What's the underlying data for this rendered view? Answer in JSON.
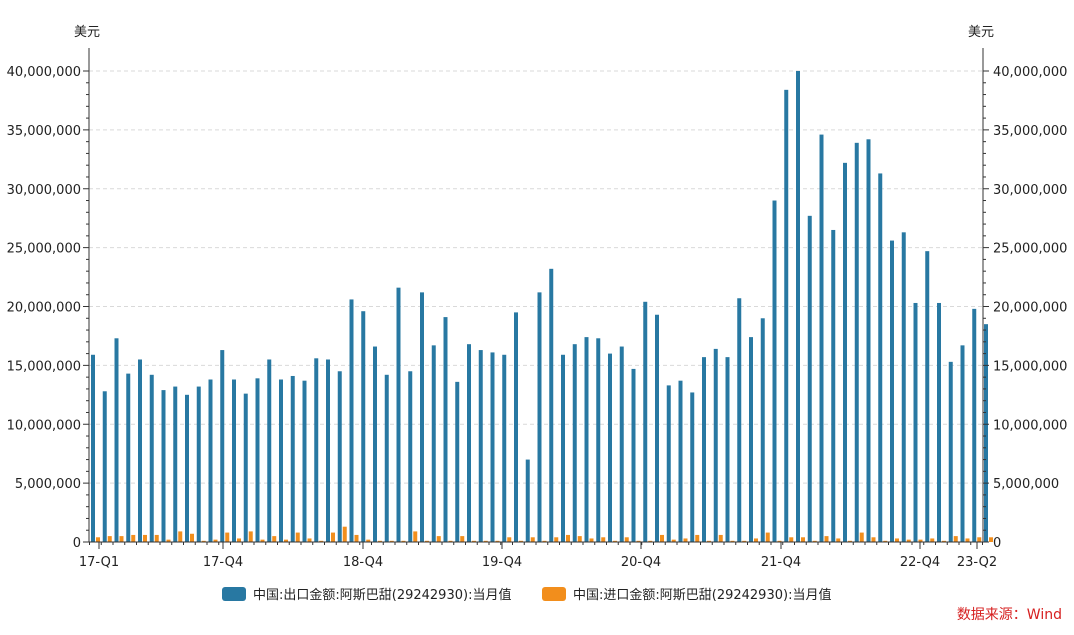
{
  "colors": {
    "export": "#2878a2",
    "import": "#f28e1c",
    "source": "#d62020"
  },
  "chart_data": {
    "type": "bar",
    "left_unit": "美元",
    "right_unit": "美元",
    "ylim": [
      0,
      40000000
    ],
    "y_ticks": [
      "0",
      "5,000,000",
      "10,000,000",
      "15,000,000",
      "20,000,000",
      "25,000,000",
      "30,000,000",
      "35,000,000",
      "40,000,000"
    ],
    "x_tick_labels": [
      "17-Q1",
      "17-Q4",
      "18-Q4",
      "19-Q4",
      "20-Q4",
      "21-Q4",
      "22-Q4",
      "23-Q2"
    ],
    "grid": "horizontal-dashed",
    "legend_position": "bottom",
    "source": "数据来源：Wind",
    "series": [
      {
        "name": "中国:出口金额:阿斯巴甜(29242930):当月值",
        "values": [
          15900000,
          12800000,
          17300000,
          14300000,
          15500000,
          14200000,
          12900000,
          13200000,
          12500000,
          13200000,
          13800000,
          16300000,
          13800000,
          12600000,
          13900000,
          15500000,
          13800000,
          14100000,
          13700000,
          15600000,
          15500000,
          14500000,
          20600000,
          19600000,
          16600000,
          14200000,
          21600000,
          14500000,
          21200000,
          16700000,
          19100000,
          13600000,
          16800000,
          16300000,
          16100000,
          15900000,
          19500000,
          7000000,
          21200000,
          23200000,
          15900000,
          16800000,
          17400000,
          17300000,
          16000000,
          16600000,
          14700000,
          20400000,
          19300000,
          13300000,
          13700000,
          12700000,
          15700000,
          16400000,
          15700000,
          20700000,
          17400000,
          19000000,
          29000000,
          38400000,
          40000000,
          27700000,
          34600000,
          26500000,
          32200000,
          33900000,
          34200000,
          31300000,
          25600000,
          26300000,
          20300000,
          24700000,
          20300000,
          15300000,
          16700000,
          19800000,
          18500000
        ]
      },
      {
        "name": "中国:进口金额:阿斯巴甜(29242930):当月值",
        "values": [
          400000,
          500000,
          500000,
          600000,
          600000,
          600000,
          200000,
          900000,
          700000,
          100000,
          200000,
          800000,
          300000,
          900000,
          200000,
          500000,
          200000,
          800000,
          300000,
          100000,
          800000,
          1300000,
          600000,
          200000,
          100000,
          100000,
          100000,
          900000,
          100000,
          500000,
          100000,
          500000,
          100000,
          100000,
          100000,
          400000,
          100000,
          400000,
          100000,
          400000,
          600000,
          500000,
          300000,
          400000,
          100000,
          400000,
          100000,
          100000,
          600000,
          200000,
          300000,
          600000,
          100000,
          600000,
          100000,
          100000,
          300000,
          800000,
          100000,
          400000,
          400000,
          100000,
          500000,
          300000,
          100000,
          800000,
          400000,
          100000,
          300000,
          200000,
          200000,
          300000,
          100000,
          500000,
          300000,
          400000,
          400000
        ]
      }
    ]
  }
}
